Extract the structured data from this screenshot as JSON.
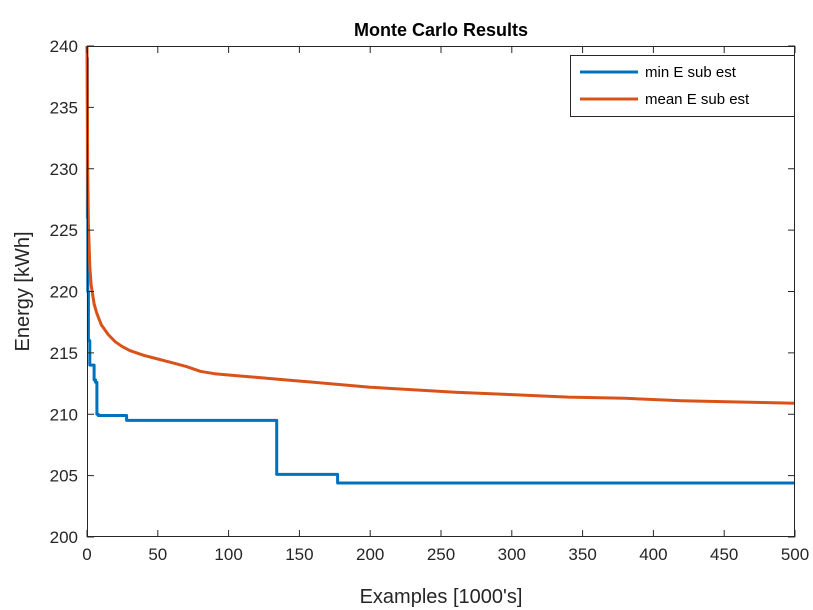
{
  "chart_data": {
    "type": "line",
    "title": "Monte Carlo Results",
    "xlabel": "Examples [1000's]",
    "ylabel": "Energy [kWh]",
    "xlim": [
      0,
      500
    ],
    "ylim": [
      200,
      240
    ],
    "xticks": [
      0,
      50,
      100,
      150,
      200,
      250,
      300,
      350,
      400,
      450,
      500
    ],
    "yticks": [
      200,
      205,
      210,
      215,
      220,
      225,
      230,
      235,
      240
    ],
    "grid": false,
    "legend_position": "top-right",
    "series": [
      {
        "name": "min E sub est",
        "color": "#0072BD",
        "step": true,
        "x": [
          0,
          0.3,
          0.6,
          1,
          2,
          3,
          5,
          6,
          7,
          8,
          27,
          28,
          133,
          134,
          176,
          177,
          500
        ],
        "y": [
          239,
          226,
          220,
          216,
          214,
          214,
          212.8,
          212.6,
          210,
          209.9,
          209.9,
          209.5,
          209.5,
          205.1,
          205.1,
          204.4,
          204.4
        ]
      },
      {
        "name": "mean E sub est",
        "color": "#D95319",
        "step": false,
        "x": [
          0,
          0.5,
          1,
          2,
          3,
          5,
          7,
          10,
          15,
          20,
          25,
          30,
          40,
          50,
          60,
          70,
          80,
          90,
          100,
          120,
          140,
          160,
          180,
          200,
          230,
          260,
          300,
          340,
          380,
          420,
          460,
          500
        ],
        "y": [
          240,
          230,
          225.5,
          222,
          220.5,
          219,
          218.2,
          217.3,
          216.5,
          215.9,
          215.5,
          215.2,
          214.8,
          214.5,
          214.2,
          213.9,
          213.5,
          213.3,
          213.2,
          213,
          212.8,
          212.6,
          212.4,
          212.2,
          212,
          211.8,
          211.6,
          211.4,
          211.3,
          211.1,
          211,
          210.9
        ]
      }
    ]
  }
}
